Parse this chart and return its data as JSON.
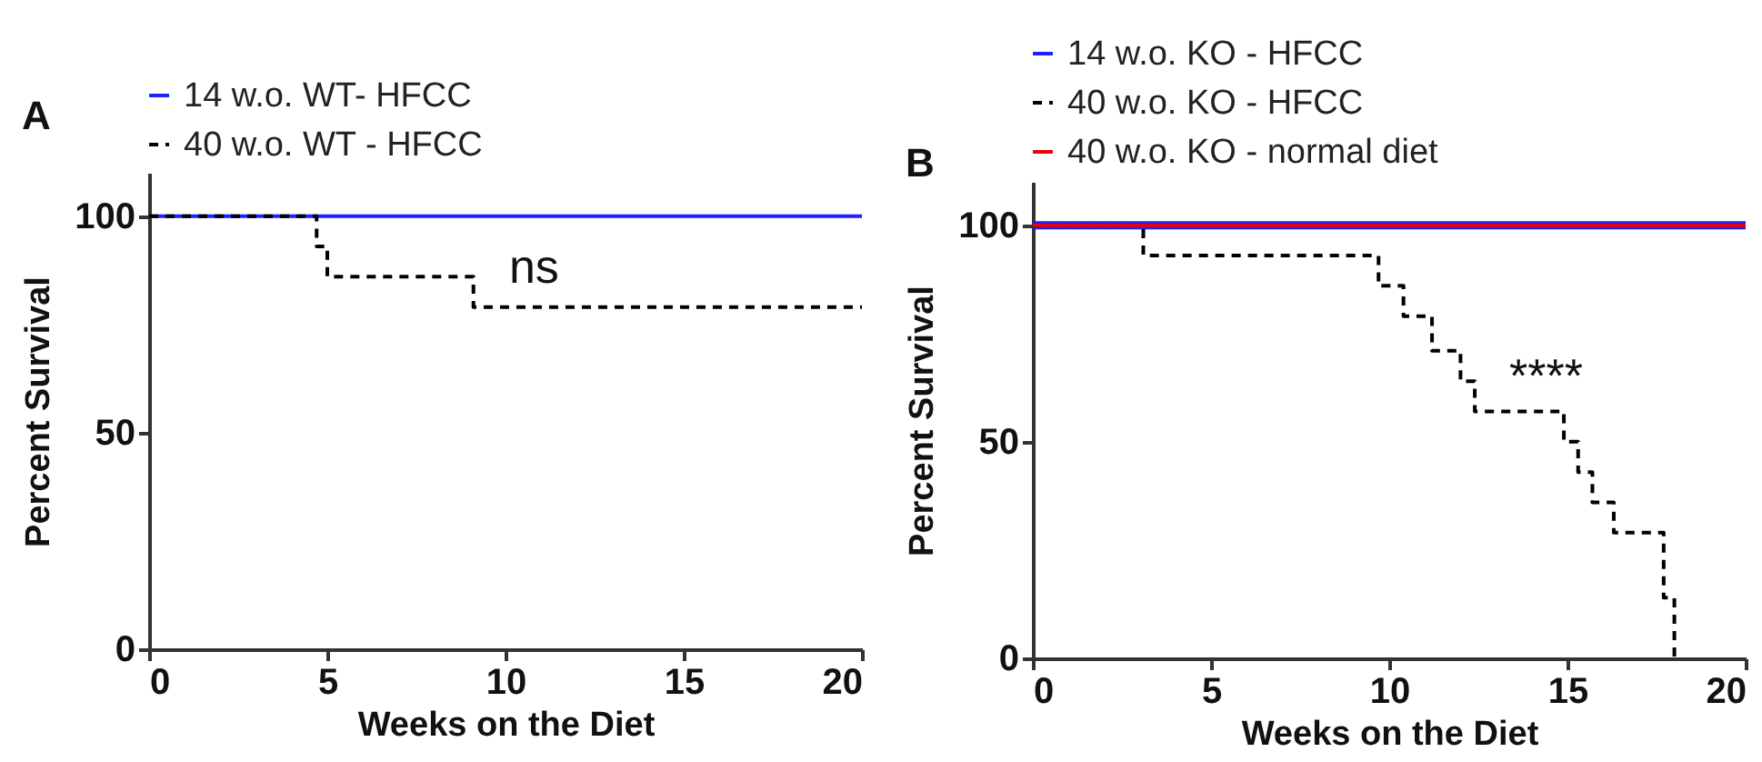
{
  "chart_data": [
    {
      "type": "step",
      "title": "A",
      "xlabel": "Weeks on the Diet",
      "ylabel": "Percent Survival",
      "xlim": [
        0,
        20
      ],
      "xticks": [
        0,
        5,
        10,
        15,
        20
      ],
      "ylim": [
        0,
        110
      ],
      "yticks": [
        0,
        50,
        100
      ],
      "grid": false,
      "legend": "top left",
      "marker": "none",
      "series": [
        {
          "name": "14 w.o. WT- HFCC",
          "color": "#1f1fff",
          "line_style": "solid",
          "x": [
            0,
            20
          ],
          "values": [
            100,
            100
          ]
        },
        {
          "name": "40 w.o. WT - HFCC",
          "color": "#000000",
          "line_style": "dashed",
          "x": [
            0,
            4.7,
            5.0,
            9.1,
            20
          ],
          "values": [
            100,
            93,
            86,
            79,
            79
          ]
        }
      ],
      "annotations": [
        "ns"
      ]
    },
    {
      "type": "step",
      "title": "B",
      "xlabel": "Weeks on the Diet",
      "ylabel": "Percent Survival",
      "xlim": [
        0,
        20
      ],
      "xticks": [
        0,
        5,
        10,
        15,
        20
      ],
      "ylim": [
        0,
        110
      ],
      "yticks": [
        0,
        50,
        100
      ],
      "grid": false,
      "legend": "top left",
      "marker": "none",
      "series": [
        {
          "name": "14 w.o. KO - HFCC",
          "color": "#1f1fff",
          "line_style": "solid",
          "x": [
            0,
            20
          ],
          "values": [
            100,
            100
          ]
        },
        {
          "name": "40 w.o. KO - HFCC",
          "color": "#000000",
          "line_style": "dashed",
          "x": [
            0,
            3.1,
            9.7,
            10.4,
            11.2,
            12.0,
            12.4,
            14.9,
            15.3,
            15.7,
            16.3,
            17.7,
            18.0
          ],
          "values": [
            100,
            93,
            86,
            79,
            71,
            64,
            57,
            50,
            43,
            36,
            29,
            14,
            0
          ]
        },
        {
          "name": "40 w.o. KO - normal diet",
          "color": "#e8000b",
          "line_style": "solid",
          "x": [
            0,
            20
          ],
          "values": [
            100,
            100
          ]
        }
      ],
      "annotations": [
        "****"
      ]
    }
  ]
}
